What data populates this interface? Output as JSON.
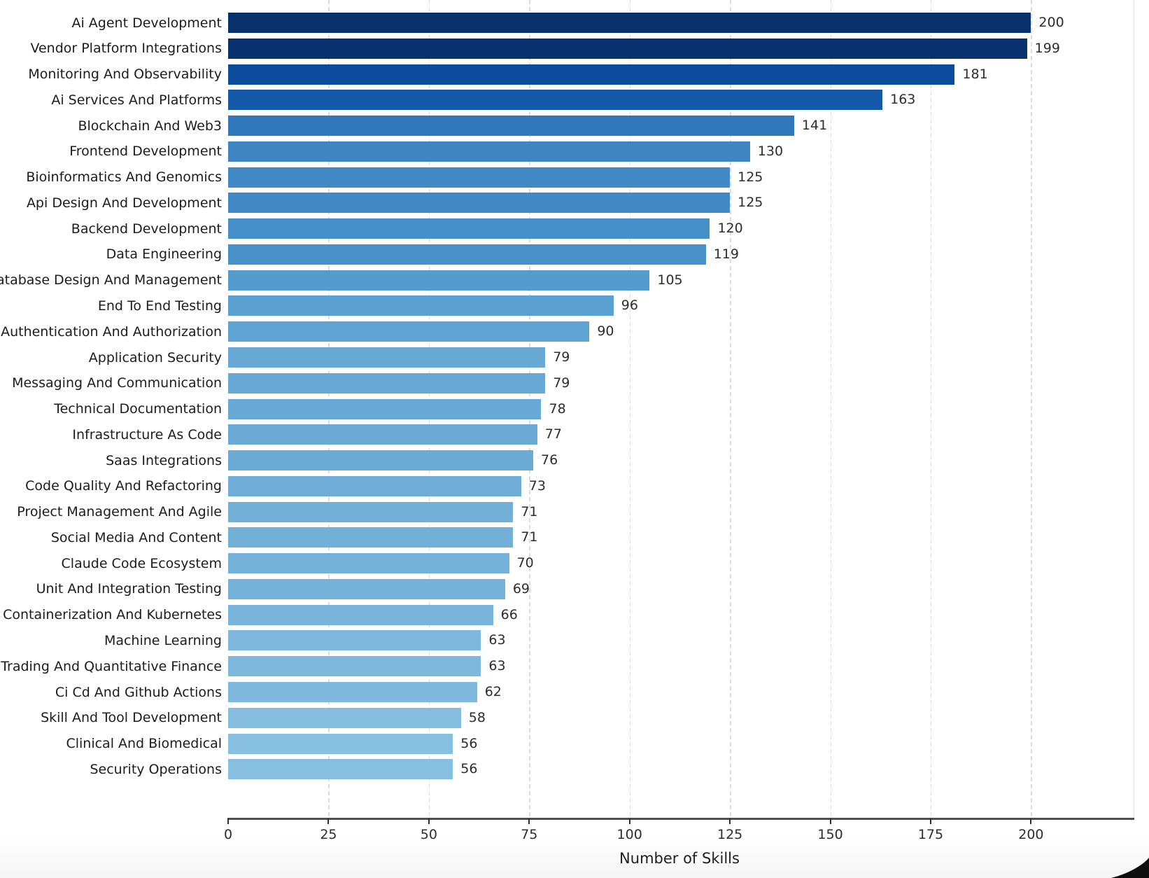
{
  "chart_data": {
    "type": "bar",
    "orientation": "horizontal",
    "title": "",
    "xlabel": "Number of Skills",
    "ylabel": "",
    "xlim": [
      0,
      224
    ],
    "x_ticks": [
      0,
      25,
      50,
      75,
      100,
      125,
      150,
      175,
      200
    ],
    "grid": "vertical dashed gridlines at each x tick, no gridline at 0",
    "legend": "none",
    "value_labels_shown": true,
    "categories": [
      "Ai Agent Development",
      "Vendor Platform Integrations",
      "Monitoring And Observability",
      "Ai Services And Platforms",
      "Blockchain And Web3",
      "Frontend Development",
      "Bioinformatics And Genomics",
      "Api Design And Development",
      "Backend Development",
      "Data Engineering",
      "Database Design And Management",
      "End To End Testing",
      "Authentication And Authorization",
      "Application Security",
      "Messaging And Communication",
      "Technical Documentation",
      "Infrastructure As Code",
      "Saas Integrations",
      "Code Quality And Refactoring",
      "Project Management And Agile",
      "Social Media And Content",
      "Claude Code Ecosystem",
      "Unit And Integration Testing",
      "Containerization And Kubernetes",
      "Machine Learning",
      "Trading And Quantitative Finance",
      "Ci Cd And Github Actions",
      "Skill And Tool Development",
      "Clinical And Biomedical",
      "Security Operations"
    ],
    "values": [
      200,
      199,
      181,
      163,
      141,
      130,
      125,
      125,
      120,
      119,
      105,
      96,
      90,
      79,
      79,
      78,
      77,
      76,
      73,
      71,
      71,
      70,
      69,
      66,
      63,
      63,
      62,
      58,
      56,
      56
    ],
    "bar_colors": [
      "#08306b",
      "#09316d",
      "#0d4c9d",
      "#1559a9",
      "#2e78bb",
      "#3e85c2",
      "#4289c5",
      "#4289c5",
      "#468fc8",
      "#4791c8",
      "#549bce",
      "#5aa0d1",
      "#5fa3d2",
      "#67a8d4",
      "#67a8d4",
      "#69a9d5",
      "#6aaad5",
      "#6babd6",
      "#6fadd7",
      "#72b0d8",
      "#72b0d8",
      "#74b1d9",
      "#75b2d9",
      "#79b5da",
      "#7eb8dc",
      "#7eb8dc",
      "#7fb9dd",
      "#85bddf",
      "#87bfe0",
      "#87bfe0"
    ]
  },
  "colors": {
    "background": "#ffffff",
    "axis_spine": "#4f4f4f",
    "tick_mark": "#2f2f2f",
    "gridline": "#dedede",
    "category_text": "#1c1c1c",
    "value_text": "#2d2d2d",
    "corner_fold": "#0d0d0d"
  }
}
